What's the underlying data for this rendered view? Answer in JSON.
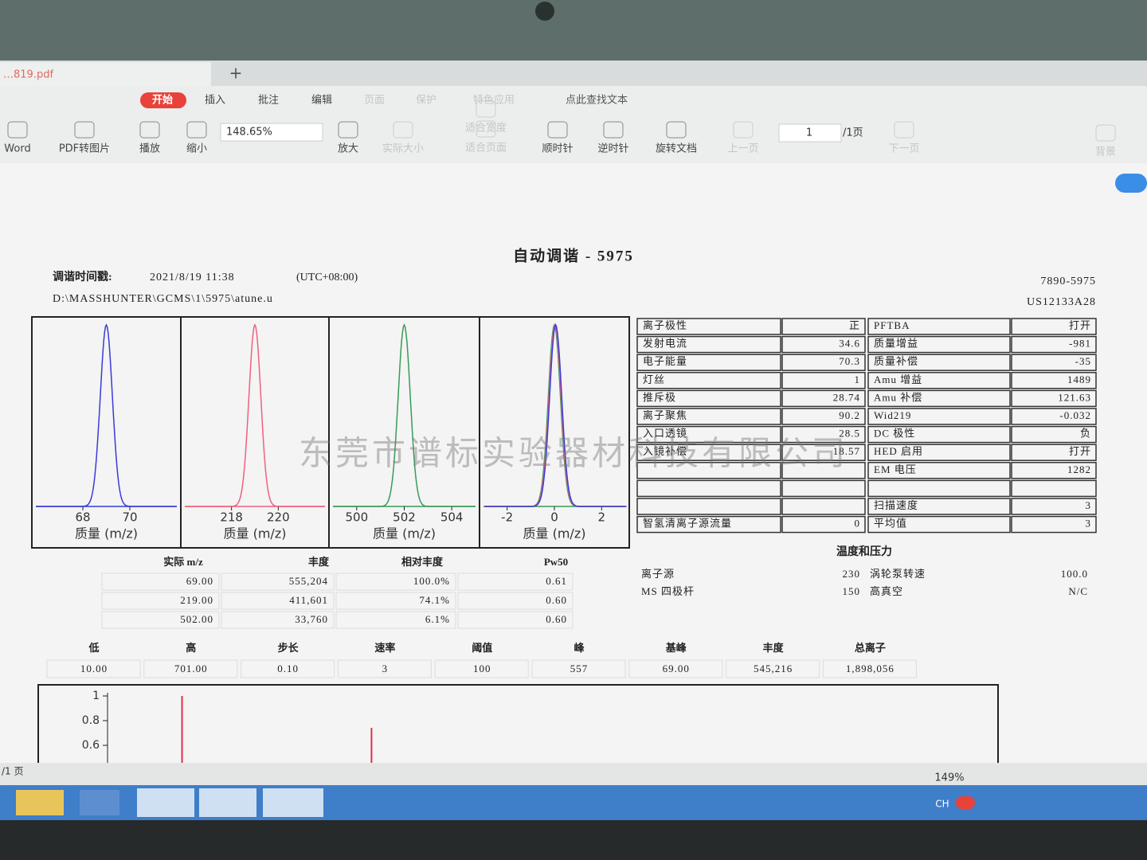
{
  "window": {
    "tab_title": "…819.pdf",
    "new_tab": "+"
  },
  "ribbon": {
    "tabs": [
      "开始",
      "插入",
      "批注",
      "编辑",
      "页面",
      "保护",
      "特色应用"
    ],
    "search": "点此查找文本"
  },
  "toolbar": {
    "buttons": [
      "Word",
      "PDF转图片",
      "播放",
      "缩小",
      "放大",
      "实际大小",
      "适合宽度",
      "适合页面",
      "顺时针",
      "逆时针",
      "旋转文档",
      "上一页",
      "下一页",
      "背景"
    ],
    "zoom": "148.65%",
    "page": "1",
    "page_total": "/1页"
  },
  "report": {
    "title": "自动调谐 - 5975",
    "timestamp_label": "调谐时间戳:",
    "timestamp": "2021/8/19 11:38",
    "timezone": "(UTC+08:00)",
    "path": "D:\\MASSHUNTER\\GCMS\\1\\5975\\atune.u",
    "instrument": "7890-5975",
    "serial": "US12133A28"
  },
  "peak_plots": [
    {
      "colors": [
        "#3a3ad8"
      ],
      "xlim": [
        66,
        72
      ],
      "xticks": [
        68,
        70
      ],
      "peak": 69,
      "fwhm": 0.61,
      "xlabel": "质量 (m/z)"
    },
    {
      "colors": [
        "#f06080"
      ],
      "xlim": [
        216,
        222
      ],
      "xticks": [
        218,
        220
      ],
      "peak": 219,
      "fwhm": 0.6,
      "xlabel": "质量 (m/z)"
    },
    {
      "colors": [
        "#3a9a5a"
      ],
      "xlim": [
        499,
        505
      ],
      "xticks": [
        500,
        502,
        504
      ],
      "peak": 502,
      "fwhm": 0.6,
      "xlabel": "质量 (m/z)"
    },
    {
      "colors": [
        "#3a9a5a",
        "#f06080",
        "#3a3ad8"
      ],
      "xlim": [
        -3,
        3
      ],
      "xticks": [
        -2,
        0,
        2
      ],
      "peak": 0,
      "fwhm": 0.6,
      "xlabel": "质量 (m/z)"
    }
  ],
  "params": {
    "rows": [
      [
        "离子极性",
        "正",
        "PFTBA",
        "打开"
      ],
      [
        "发射电流",
        "34.6",
        "质量增益",
        "-981"
      ],
      [
        "电子能量",
        "70.3",
        "质量补偿",
        "-35"
      ],
      [
        "灯丝",
        "1",
        "Amu 增益",
        "1489"
      ],
      [
        "推斥极",
        "28.74",
        "Amu 补偿",
        "121.63"
      ],
      [
        "离子聚焦",
        "90.2",
        "Wid219",
        "-0.032"
      ],
      [
        "入口透镜",
        "28.5",
        "DC 极性",
        "负"
      ],
      [
        "入镜补偿",
        "18.57",
        "HED 启用",
        "打开"
      ],
      [
        null,
        null,
        "EM 电压",
        "1282"
      ],
      [
        null,
        null,
        null,
        null
      ],
      [
        null,
        null,
        "扫描速度",
        "3"
      ],
      [
        "智氢清离子源流量",
        "0",
        "平均值",
        "3"
      ]
    ]
  },
  "temperature": {
    "title": "温度和压力",
    "rows": [
      [
        "离子源",
        "230",
        "涡轮泵转速",
        "100.0"
      ],
      [
        "MS 四极杆",
        "150",
        "高真空",
        "N/C"
      ]
    ]
  },
  "peaks_table": {
    "headers": [
      "实际 m/z",
      "丰度",
      "相对丰度",
      "Pw50"
    ],
    "rows": [
      [
        "69.00",
        "555,204",
        "100.0%",
        "0.61"
      ],
      [
        "219.00",
        "411,601",
        "74.1%",
        "0.60"
      ],
      [
        "502.00",
        "33,760",
        "6.1%",
        "0.60"
      ]
    ]
  },
  "scan_table": {
    "headers": [
      "低",
      "高",
      "步长",
      "速率",
      "阈值",
      "峰",
      "基峰",
      "丰度",
      "总离子"
    ],
    "values": [
      "10.00",
      "701.00",
      "0.10",
      "3",
      "100",
      "557",
      "69.00",
      "545,216",
      "1,898,056"
    ]
  },
  "spectrum": {
    "xlim": [
      10,
      710
    ],
    "ylim": [
      0,
      1
    ],
    "yticks": [
      1,
      0.8,
      0.6
    ],
    "peaks": [
      69,
      219
    ],
    "values": [
      1,
      0.741
    ],
    "color": "#e0304a"
  },
  "watermark": "东莞市谱标实验器材科技有限公司",
  "status": {
    "page": "/1 页",
    "zoom": "149%"
  },
  "taskbar": {
    "lang": "CH"
  }
}
